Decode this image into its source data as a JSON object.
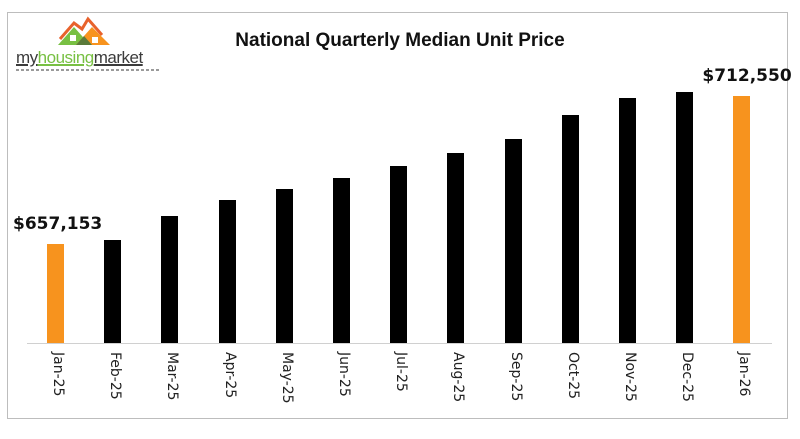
{
  "logo": {
    "part1": "my",
    "part2": "housing",
    "part3": "market"
  },
  "colors": {
    "highlight": "#f7931e",
    "bar": "#000000",
    "axis": "#d0d0d0",
    "logo_green": "#78c043",
    "logo_orange": "#f7931e"
  },
  "chart_data": {
    "type": "bar",
    "title": "National Quarterly Median Unit Price",
    "xlabel": "",
    "ylabel": "",
    "grid": false,
    "legend": null,
    "categories": [
      "Jan-25",
      "Feb-25",
      "Mar-25",
      "Apr-25",
      "May-25",
      "Jun-25",
      "Jul-25",
      "Aug-25",
      "Sep-25",
      "Oct-25",
      "Nov-25",
      "Dec-25",
      "Jan-26"
    ],
    "values": [
      657153,
      658650,
      667630,
      673620,
      677740,
      681860,
      686350,
      691210,
      696450,
      705440,
      711800,
      714040,
      712550
    ],
    "highlighted": [
      "Jan-25",
      "Jan-26"
    ],
    "data_labels": [
      {
        "category": "Jan-25",
        "text": "$657,153"
      },
      {
        "category": "Jan-26",
        "text": "$712,550"
      }
    ],
    "ylim": [
      620000,
      720000
    ]
  }
}
